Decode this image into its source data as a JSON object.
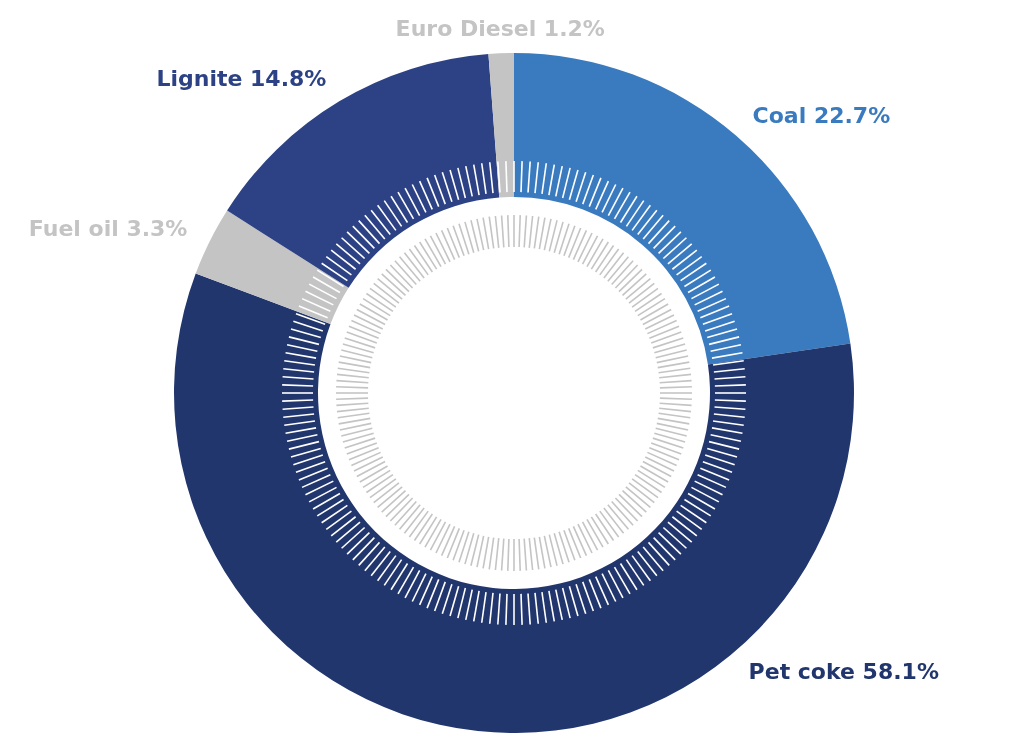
{
  "chart_data": {
    "type": "donut",
    "categories": [
      "Coal",
      "Pet coke",
      "Fuel oil",
      "Lignite",
      "Euro Diesel"
    ],
    "values": [
      22.7,
      58.1,
      3.3,
      14.8,
      1.2
    ],
    "colors": [
      "#3a7bc0",
      "#22366e",
      "#c4c4c4",
      "#2c4284",
      "#c4c4c4"
    ],
    "value_labels": [
      "22.7%",
      "58.1%",
      "3.3%",
      "14.8%",
      "1.2%"
    ]
  }
}
